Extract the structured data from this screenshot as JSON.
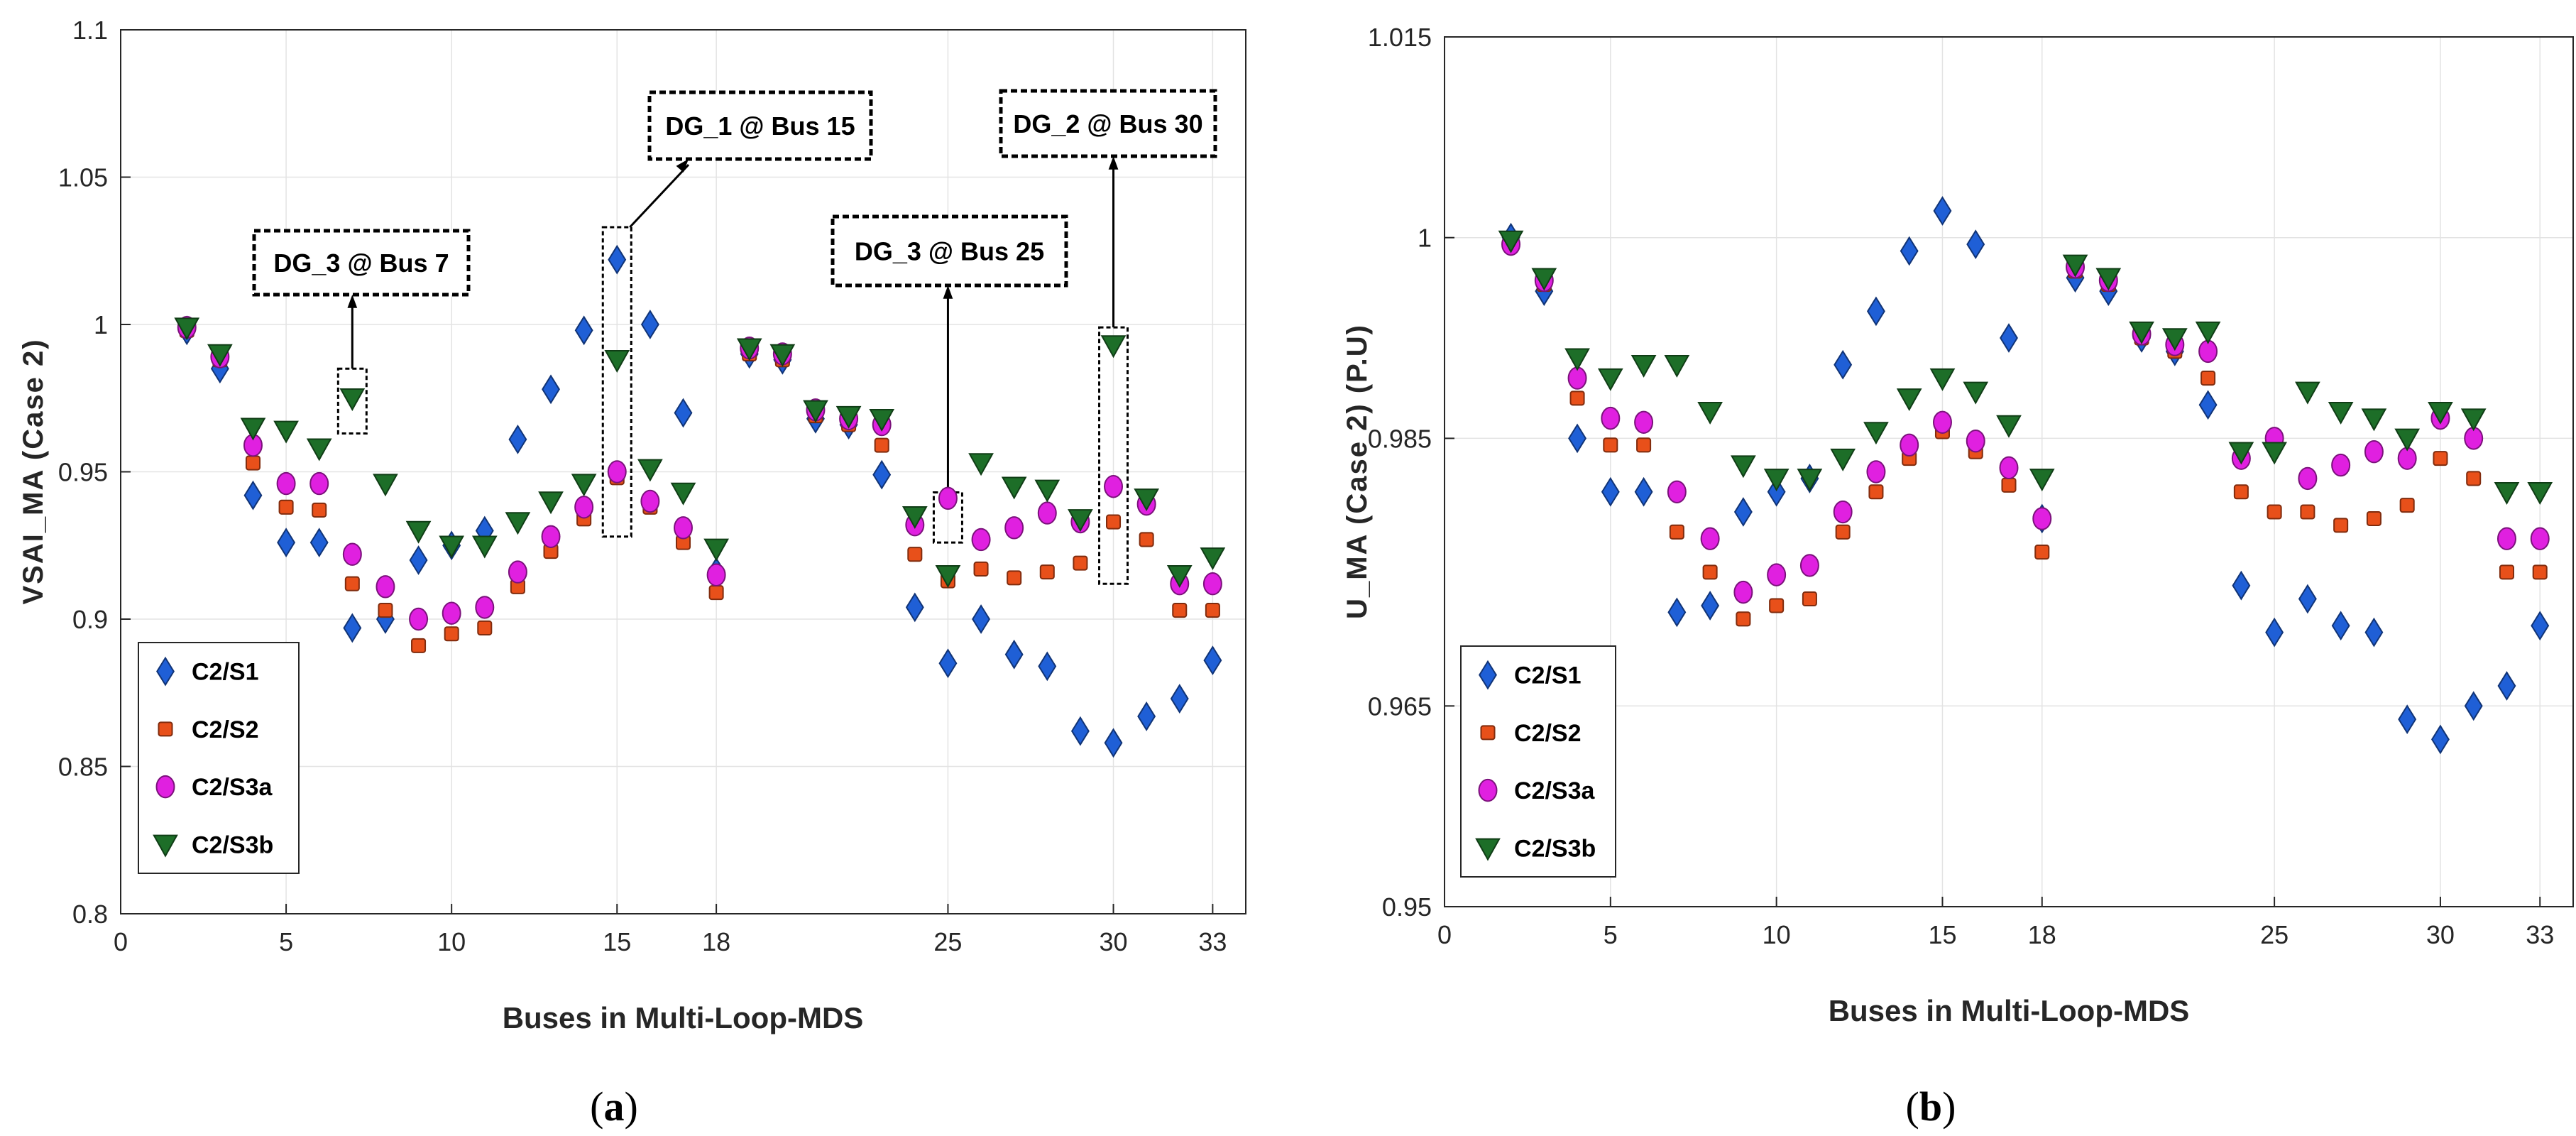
{
  "chart_data": [
    {
      "type": "scatter",
      "panel": "a",
      "panel_label": "a",
      "xlabel": "Buses in Multi-Loop-MDS",
      "ylabel": "VSAI_MA (Case 2)",
      "xlim": [
        0,
        34
      ],
      "ylim": [
        0.8,
        1.1
      ],
      "xticks": [
        0,
        5,
        10,
        15,
        18,
        25,
        30,
        33
      ],
      "yticks": [
        0.8,
        0.85,
        0.9,
        0.95,
        1,
        1.05,
        1.1
      ],
      "ytick_labels": [
        "0.8",
        "0.85",
        "0.9",
        "0.95",
        "1",
        "1.05",
        "1.1"
      ],
      "grid": true,
      "legend_position": "bottom-left",
      "x": [
        2,
        3,
        4,
        5,
        6,
        7,
        8,
        9,
        10,
        11,
        12,
        13,
        14,
        15,
        16,
        17,
        18,
        19,
        20,
        21,
        22,
        23,
        24,
        25,
        26,
        27,
        28,
        29,
        30,
        31,
        32,
        33
      ],
      "series": [
        {
          "name": "C2/S1",
          "marker": "diamond",
          "color": "#1f5fd6",
          "values": [
            0.998,
            0.985,
            0.942,
            0.926,
            0.926,
            0.897,
            0.9,
            0.92,
            0.925,
            0.93,
            0.961,
            0.978,
            0.998,
            1.022,
            1.0,
            0.97,
            0.916,
            0.99,
            0.988,
            0.968,
            0.966,
            0.949,
            0.904,
            0.885,
            0.9,
            0.888,
            0.884,
            0.862,
            0.858,
            0.867,
            0.873,
            0.886
          ]
        },
        {
          "name": "C2/S2",
          "marker": "square",
          "color": "#e8501a",
          "values": [
            0.998,
            0.988,
            0.953,
            0.938,
            0.937,
            0.912,
            0.903,
            0.891,
            0.895,
            0.897,
            0.911,
            0.923,
            0.934,
            0.948,
            0.938,
            0.926,
            0.909,
            0.99,
            0.988,
            0.969,
            0.966,
            0.959,
            0.922,
            0.913,
            0.917,
            0.914,
            0.916,
            0.919,
            0.933,
            0.927,
            0.903,
            0.903
          ]
        },
        {
          "name": "C2/S3a",
          "marker": "circle",
          "color": "#e020e0",
          "values": [
            0.999,
            0.989,
            0.959,
            0.946,
            0.946,
            0.922,
            0.911,
            0.9,
            0.902,
            0.904,
            0.916,
            0.928,
            0.938,
            0.95,
            0.94,
            0.931,
            0.915,
            0.992,
            0.99,
            0.971,
            0.968,
            0.966,
            0.932,
            0.941,
            0.927,
            0.931,
            0.936,
            0.933,
            0.945,
            0.939,
            0.912,
            0.912
          ]
        },
        {
          "name": "C2/S3b",
          "marker": "triangle-down",
          "color": "#1d6e28",
          "values": [
            0.999,
            0.99,
            0.965,
            0.964,
            0.958,
            0.975,
            0.946,
            0.93,
            0.925,
            0.925,
            0.933,
            0.94,
            0.946,
            0.988,
            0.951,
            0.943,
            0.924,
            0.992,
            0.99,
            0.971,
            0.969,
            0.968,
            0.935,
            0.915,
            0.953,
            0.945,
            0.944,
            0.934,
            0.993,
            0.941,
            0.915,
            0.921
          ]
        }
      ],
      "annotations": [
        {
          "text": "DG_3 @ Bus 7",
          "bus": 7
        },
        {
          "text": "DG_1 @ Bus 15",
          "bus": 15
        },
        {
          "text": "DG_3 @ Bus 25",
          "bus": 25
        },
        {
          "text": "DG_2 @ Bus 30",
          "bus": 30
        }
      ]
    },
    {
      "type": "scatter",
      "panel": "b",
      "panel_label": "b",
      "xlabel": "Buses in Multi-Loop-MDS",
      "ylabel": "U_MA (Case 2) (P.U)",
      "xlim": [
        0,
        34
      ],
      "ylim": [
        0.95,
        1.015
      ],
      "xticks": [
        0,
        5,
        10,
        15,
        18,
        25,
        30,
        33
      ],
      "yticks": [
        0.95,
        0.965,
        0.985,
        1,
        1.015
      ],
      "ytick_labels": [
        "0.95",
        "0.965",
        "0.985",
        "1",
        "1.015"
      ],
      "grid": true,
      "legend_position": "bottom-left",
      "x": [
        2,
        3,
        4,
        5,
        6,
        7,
        8,
        9,
        10,
        11,
        12,
        13,
        14,
        15,
        16,
        17,
        18,
        19,
        20,
        21,
        22,
        23,
        24,
        25,
        26,
        27,
        28,
        29,
        30,
        31,
        32,
        33
      ],
      "series": [
        {
          "name": "C2/S1",
          "marker": "diamond",
          "color": "#1f5fd6",
          "values": [
            1.0,
            0.996,
            0.985,
            0.981,
            0.981,
            0.972,
            0.9725,
            0.9795,
            0.981,
            0.982,
            0.9905,
            0.9945,
            0.999,
            1.002,
            0.9995,
            0.9925,
            0.979,
            0.997,
            0.996,
            0.9925,
            0.9915,
            0.9875,
            0.974,
            0.9705,
            0.973,
            0.971,
            0.9705,
            0.964,
            0.9625,
            0.965,
            0.9665,
            0.971
          ]
        },
        {
          "name": "C2/S2",
          "marker": "square",
          "color": "#e8501a",
          "values": [
            0.9995,
            0.9965,
            0.988,
            0.9845,
            0.9845,
            0.978,
            0.975,
            0.9715,
            0.9725,
            0.973,
            0.978,
            0.981,
            0.9835,
            0.9855,
            0.984,
            0.9815,
            0.9765,
            0.9975,
            0.9965,
            0.9925,
            0.9915,
            0.9895,
            0.981,
            0.9795,
            0.9795,
            0.9785,
            0.979,
            0.98,
            0.9835,
            0.982,
            0.975,
            0.975
          ]
        },
        {
          "name": "C2/S3a",
          "marker": "circle",
          "color": "#e020e0",
          "values": [
            0.9995,
            0.9968,
            0.9895,
            0.9865,
            0.9862,
            0.981,
            0.9775,
            0.9735,
            0.9748,
            0.9755,
            0.9795,
            0.9825,
            0.9845,
            0.9862,
            0.9848,
            0.9828,
            0.979,
            0.9978,
            0.9968,
            0.9928,
            0.992,
            0.9915,
            0.9835,
            0.985,
            0.982,
            0.983,
            0.984,
            0.9835,
            0.9865,
            0.985,
            0.9775,
            0.9775
          ]
        },
        {
          "name": "C2/S3b",
          "marker": "triangle-down",
          "color": "#1d6e28",
          "values": [
            0.9998,
            0.997,
            0.991,
            0.9895,
            0.9905,
            0.9905,
            0.987,
            0.983,
            0.982,
            0.982,
            0.9835,
            0.9855,
            0.988,
            0.9895,
            0.9885,
            0.986,
            0.982,
            0.998,
            0.997,
            0.993,
            0.9925,
            0.993,
            0.984,
            0.984,
            0.9885,
            0.987,
            0.9865,
            0.985,
            0.987,
            0.9865,
            0.981,
            0.981
          ]
        }
      ]
    }
  ]
}
